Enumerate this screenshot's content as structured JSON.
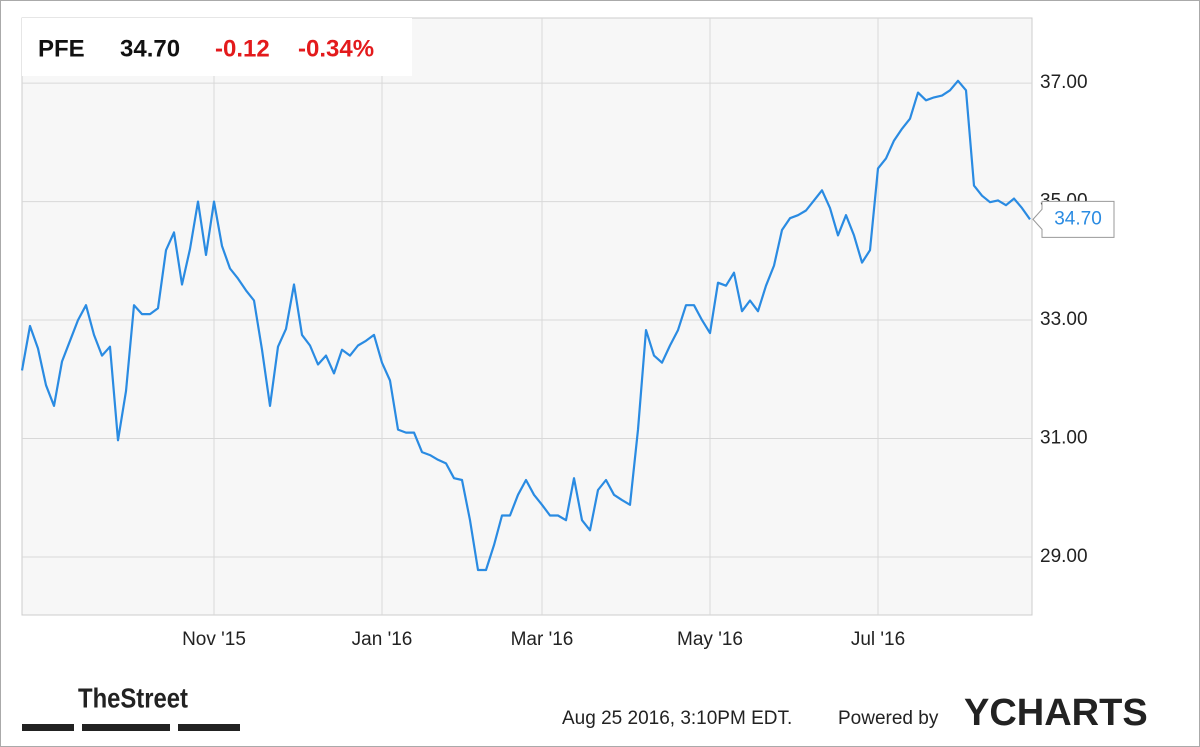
{
  "chart_data": {
    "type": "line",
    "ticker": "PFE",
    "price": "34.70",
    "change": "-0.12",
    "change_percent": "-0.34%",
    "categories": [
      null,
      null,
      null,
      null,
      null,
      null,
      null,
      null,
      null,
      null,
      null,
      null,
      null,
      null,
      null,
      null,
      null,
      null,
      null,
      null,
      null,
      null,
      null,
      null,
      "Nov '15",
      null,
      null,
      null,
      null,
      null,
      null,
      null,
      null,
      null,
      null,
      null,
      null,
      null,
      null,
      null,
      null,
      null,
      null,
      null,
      null,
      "Jan '16",
      null,
      null,
      null,
      null,
      null,
      null,
      null,
      null,
      null,
      null,
      null,
      null,
      null,
      null,
      null,
      null,
      null,
      null,
      null,
      "Mar '16",
      null,
      null,
      null,
      null,
      null,
      null,
      null,
      null,
      null,
      null,
      null,
      null,
      null,
      null,
      null,
      null,
      null,
      null,
      null,
      null,
      "May '16",
      null,
      null,
      null,
      null,
      null,
      null,
      null,
      null,
      null,
      null,
      null,
      null,
      null,
      null,
      null,
      null,
      null,
      null,
      null,
      null,
      "Jul '16",
      null,
      null,
      null,
      null,
      null,
      null,
      null,
      null,
      null,
      null,
      null,
      null,
      null,
      null,
      null,
      null,
      null,
      null,
      null
    ],
    "values": [
      32.15,
      32.9,
      32.52,
      31.9,
      31.55,
      32.3,
      32.65,
      33.0,
      33.25,
      32.75,
      32.4,
      32.55,
      30.97,
      31.8,
      33.25,
      33.1,
      33.1,
      33.2,
      34.18,
      34.48,
      33.6,
      34.2,
      35.0,
      34.1,
      35.0,
      34.25,
      33.87,
      33.7,
      33.5,
      33.33,
      32.5,
      31.55,
      32.55,
      32.85,
      33.6,
      32.75,
      32.57,
      32.25,
      32.4,
      32.1,
      32.5,
      32.4,
      32.57,
      32.65,
      32.75,
      32.28,
      31.98,
      31.15,
      31.1,
      31.1,
      30.77,
      30.72,
      30.64,
      30.58,
      30.33,
      30.3,
      29.62,
      28.78,
      28.78,
      29.2,
      29.7,
      29.7,
      30.05,
      30.3,
      30.05,
      29.88,
      29.7,
      29.7,
      29.62,
      30.33,
      29.62,
      29.45,
      30.13,
      30.3,
      30.05,
      29.96,
      29.88,
      31.15,
      32.83,
      32.4,
      32.28,
      32.57,
      32.83,
      33.25,
      33.25,
      33.0,
      32.78,
      33.63,
      33.58,
      33.8,
      33.15,
      33.33,
      33.15,
      33.58,
      33.92,
      34.52,
      34.72,
      34.77,
      34.85,
      35.02,
      35.19,
      34.89,
      34.43,
      34.77,
      34.43,
      33.97,
      34.18,
      35.56,
      35.73,
      36.03,
      36.23,
      36.4,
      36.84,
      36.71,
      36.76,
      36.79,
      36.88,
      37.04,
      36.88,
      35.27,
      35.1,
      34.99,
      35.02,
      34.94,
      35.05,
      34.89,
      34.7
    ],
    "color": "#2a8be2",
    "ylim": [
      28.02,
      38.1
    ],
    "yticks": [
      {
        "value": 29,
        "label": "29.00"
      },
      {
        "value": 31,
        "label": "31.00"
      },
      {
        "value": 33,
        "label": "33.00"
      },
      {
        "value": 35,
        "label": "35.00"
      },
      {
        "value": 37,
        "label": "37.00"
      }
    ],
    "grid": true
  },
  "footer": {
    "logo": "TheStreet",
    "timestamp": "Aug 25 2016, 3:10PM EDT.",
    "powered": "Powered by",
    "brand": "YCHARTS"
  }
}
